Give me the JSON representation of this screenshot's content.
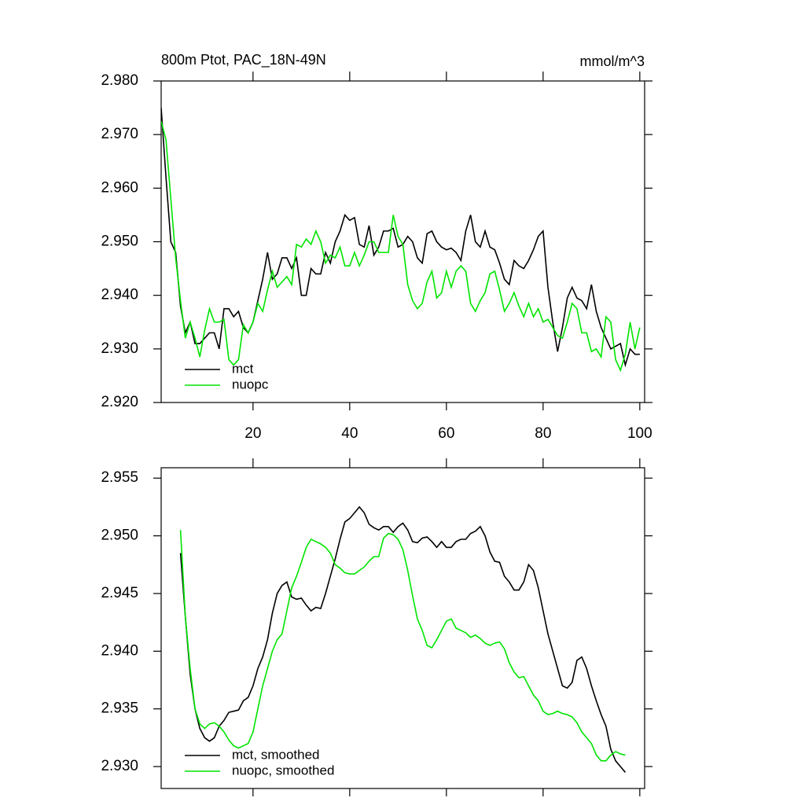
{
  "chart_data": [
    {
      "type": "line",
      "title": "800m Ptot, PAC_18N-49N",
      "right_title": "mmol/m^3",
      "x": [
        1,
        2,
        3,
        4,
        5,
        6,
        7,
        8,
        9,
        10,
        11,
        12,
        13,
        14,
        15,
        16,
        17,
        18,
        19,
        20,
        21,
        22,
        23,
        24,
        25,
        26,
        27,
        28,
        29,
        30,
        31,
        32,
        33,
        34,
        35,
        36,
        37,
        38,
        39,
        40,
        41,
        42,
        43,
        44,
        45,
        46,
        47,
        48,
        49,
        50,
        51,
        52,
        53,
        54,
        55,
        56,
        57,
        58,
        59,
        60,
        61,
        62,
        63,
        64,
        65,
        66,
        67,
        68,
        69,
        70,
        71,
        72,
        73,
        74,
        75,
        76,
        77,
        78,
        79,
        80,
        81,
        82,
        83,
        84,
        85,
        86,
        87,
        88,
        89,
        90,
        91,
        92,
        93,
        94,
        95,
        96,
        97,
        98,
        99,
        100
      ],
      "series": [
        {
          "name": "mct",
          "color": "#000000",
          "values": [
            2.975,
            2.962,
            2.95,
            2.948,
            2.938,
            2.933,
            2.935,
            2.931,
            2.931,
            2.932,
            2.933,
            2.933,
            2.93,
            2.9375,
            2.9375,
            2.936,
            2.937,
            2.934,
            2.933,
            2.935,
            2.939,
            2.943,
            2.948,
            2.943,
            2.944,
            2.947,
            2.947,
            2.945,
            2.947,
            2.94,
            2.94,
            2.945,
            2.944,
            2.944,
            2.948,
            2.946,
            2.95,
            2.952,
            2.955,
            2.954,
            2.9545,
            2.9495,
            2.949,
            2.953,
            2.9475,
            2.949,
            2.952,
            2.952,
            2.9525,
            2.949,
            2.9495,
            2.951,
            2.95,
            2.947,
            2.946,
            2.9515,
            2.952,
            2.95,
            2.949,
            2.9485,
            2.9488,
            2.948,
            2.9465,
            2.952,
            2.955,
            2.95,
            2.949,
            2.952,
            2.949,
            2.9485,
            2.946,
            2.943,
            2.942,
            2.9465,
            2.9455,
            2.945,
            2.9465,
            2.9485,
            2.951,
            2.952,
            2.9415,
            2.935,
            2.9295,
            2.934,
            2.9395,
            2.9415,
            2.9395,
            2.939,
            2.9375,
            2.942,
            2.937,
            2.934,
            2.932,
            2.93,
            2.9305,
            2.931,
            2.927,
            2.93,
            2.929,
            2.929
          ]
        },
        {
          "name": "nuopc",
          "color": "#00e400",
          "values": [
            2.9725,
            2.969,
            2.958,
            2.947,
            2.939,
            2.932,
            2.935,
            2.932,
            2.9285,
            2.9335,
            2.9375,
            2.935,
            2.935,
            2.9355,
            2.928,
            2.927,
            2.928,
            2.9345,
            2.933,
            2.935,
            2.9385,
            2.937,
            2.941,
            2.9445,
            2.9415,
            2.9425,
            2.9435,
            2.942,
            2.9495,
            2.949,
            2.9505,
            2.9495,
            2.952,
            2.95,
            2.946,
            2.9475,
            2.947,
            2.949,
            2.9455,
            2.9455,
            2.948,
            2.9455,
            2.9475,
            2.95,
            2.95,
            2.948,
            2.948,
            2.948,
            2.955,
            2.951,
            2.9495,
            2.942,
            2.939,
            2.9375,
            2.9385,
            2.9425,
            2.9445,
            2.9395,
            2.9405,
            2.9445,
            2.9415,
            2.9445,
            2.9455,
            2.9445,
            2.9385,
            2.937,
            2.939,
            2.9405,
            2.944,
            2.9445,
            2.941,
            2.937,
            2.9385,
            2.9405,
            2.938,
            2.936,
            2.9385,
            2.936,
            2.9375,
            2.935,
            2.9355,
            2.934,
            2.9325,
            2.932,
            2.935,
            2.9385,
            2.9375,
            2.933,
            2.933,
            2.9295,
            2.93,
            2.9285,
            2.936,
            2.935,
            2.928,
            2.926,
            2.929,
            2.935,
            2.93,
            2.934
          ]
        }
      ],
      "xlim": [
        1,
        101
      ],
      "xticks": [
        20,
        40,
        60,
        80,
        100
      ],
      "show_xtick_labels": true,
      "ylim": [
        2.92,
        2.98
      ],
      "yticks": [
        {
          "value": 2.92,
          "label": "2.920"
        },
        {
          "value": 2.93,
          "label": "2.930"
        },
        {
          "value": 2.94,
          "label": "2.940"
        },
        {
          "value": 2.95,
          "label": "2.950"
        },
        {
          "value": 2.96,
          "label": "2.960"
        },
        {
          "value": 2.97,
          "label": "2.970"
        },
        {
          "value": 2.98,
          "label": "2.980"
        }
      ],
      "legend": "lower left"
    },
    {
      "type": "line",
      "x": [
        5,
        6,
        7,
        8,
        9,
        10,
        11,
        12,
        13,
        14,
        15,
        16,
        17,
        18,
        19,
        20,
        21,
        22,
        23,
        24,
        25,
        26,
        27,
        28,
        29,
        30,
        31,
        32,
        33,
        34,
        35,
        36,
        37,
        38,
        39,
        40,
        41,
        42,
        43,
        44,
        45,
        46,
        47,
        48,
        49,
        50,
        51,
        52,
        53,
        54,
        55,
        56,
        57,
        58,
        59,
        60,
        61,
        62,
        63,
        64,
        65,
        66,
        67,
        68,
        69,
        70,
        71,
        72,
        73,
        74,
        75,
        76,
        77,
        78,
        79,
        80,
        81,
        82,
        83,
        84,
        85,
        86,
        87,
        88,
        89,
        90,
        91,
        92,
        93,
        94,
        95,
        96,
        97
      ],
      "series": [
        {
          "name": "mct, smoothed",
          "color": "#000000",
          "values": [
            2.9485,
            2.943,
            2.938,
            2.935,
            2.9333,
            2.9325,
            2.9322,
            2.9325,
            2.9335,
            2.934,
            2.9347,
            2.9348,
            2.9349,
            2.9357,
            2.936,
            2.937,
            2.9385,
            2.9395,
            2.941,
            2.9433,
            2.945,
            2.9457,
            2.946,
            2.9447,
            2.9445,
            2.9446,
            2.944,
            2.9435,
            2.9438,
            2.9437,
            2.945,
            2.9465,
            2.948,
            2.9497,
            2.9512,
            2.9515,
            2.952,
            2.9525,
            2.952,
            2.951,
            2.9507,
            2.9505,
            2.9508,
            2.9508,
            2.9503,
            2.9508,
            2.9511,
            2.9505,
            2.9495,
            2.9494,
            2.9498,
            2.9499,
            2.9495,
            2.949,
            2.9495,
            2.949,
            2.949,
            2.9495,
            2.9497,
            2.9497,
            2.9502,
            2.9504,
            2.9508,
            2.95,
            2.9486,
            2.9478,
            2.9477,
            2.9465,
            2.946,
            2.9453,
            2.9453,
            2.946,
            2.9475,
            2.947,
            2.9455,
            2.9435,
            2.9415,
            2.94,
            2.9385,
            2.937,
            2.9368,
            2.9373,
            2.9392,
            2.9395,
            2.9385,
            2.937,
            2.9357,
            2.9345,
            2.9335,
            2.9315,
            2.9305,
            2.93,
            2.9295
          ]
        },
        {
          "name": "nuopc, smoothed",
          "color": "#00e400",
          "values": [
            2.9505,
            2.943,
            2.9385,
            2.935,
            2.9337,
            2.9333,
            2.9337,
            2.9338,
            2.9335,
            2.933,
            2.9323,
            2.9318,
            2.9316,
            2.9318,
            2.932,
            2.933,
            2.935,
            2.937,
            2.9385,
            2.94,
            2.941,
            2.9415,
            2.9435,
            2.9455,
            2.9465,
            2.9477,
            2.949,
            2.9497,
            2.9495,
            2.9493,
            2.949,
            2.9485,
            2.9475,
            2.9472,
            2.9468,
            2.9467,
            2.9467,
            2.947,
            2.9473,
            2.9478,
            2.9482,
            2.9482,
            2.9498,
            2.9502,
            2.9501,
            2.9497,
            2.9488,
            2.947,
            2.9448,
            2.9428,
            2.9418,
            2.9405,
            2.9403,
            2.941,
            2.9418,
            2.9426,
            2.9428,
            2.942,
            2.9418,
            2.9416,
            2.9412,
            2.9414,
            2.9411,
            2.9407,
            2.9405,
            2.9407,
            2.9408,
            2.9402,
            2.939,
            2.9382,
            2.9377,
            2.9378,
            2.937,
            2.9362,
            2.9357,
            2.9348,
            2.9345,
            2.9346,
            2.9348,
            2.9346,
            2.9345,
            2.9343,
            2.9338,
            2.933,
            2.9325,
            2.932,
            2.931,
            2.9305,
            2.9305,
            2.931,
            2.9313,
            2.9311,
            2.931
          ]
        }
      ],
      "xlim": [
        1,
        101
      ],
      "xticks": [
        20,
        40,
        60,
        80,
        100
      ],
      "show_xtick_labels": false,
      "ylim": [
        2.9281,
        2.9559
      ],
      "yticks": [
        {
          "value": 2.93,
          "label": "2.930"
        },
        2.935,
        {
          "value": 2.94,
          "label": "2.940"
        },
        2.945,
        {
          "value": 2.95,
          "label": "2.950"
        },
        2.955
      ],
      "legend": "lower left"
    }
  ]
}
